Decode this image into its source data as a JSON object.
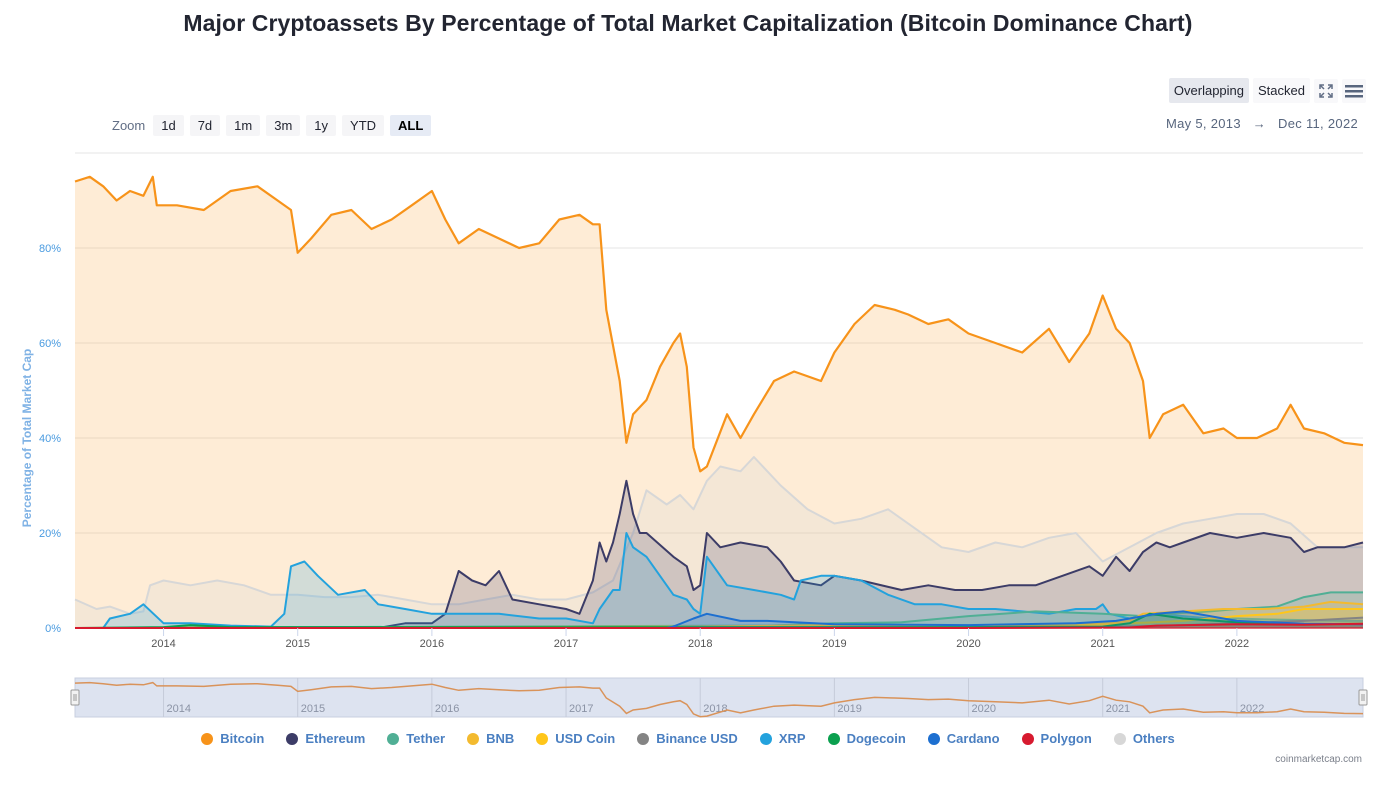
{
  "page": {
    "title": "Major Cryptoassets By Percentage of Total Market Capitalization (Bitcoin Dominance Chart)"
  },
  "zoom": {
    "label": "Zoom",
    "buttons": [
      "1d",
      "7d",
      "1m",
      "3m",
      "1y",
      "YTD",
      "ALL"
    ],
    "active": "ALL"
  },
  "modes": {
    "overlapping": "Overlapping",
    "stacked": "Stacked",
    "active": "Overlapping"
  },
  "icons": {
    "fullscreen": "fullscreen-icon",
    "menu": "hamburger-menu-icon"
  },
  "range": {
    "from": "May 5, 2013",
    "arrow": "→",
    "to": "Dec 11, 2022"
  },
  "watermark": "coinmarketcap.com",
  "chart_data": {
    "type": "area",
    "title": "Major Cryptoassets By Percentage of Total Market Capitalization (Bitcoin Dominance Chart)",
    "xlabel": "",
    "ylabel": "Percentage of Total Market Cap",
    "xlim": [
      2013.34,
      2022.94
    ],
    "ylim": [
      0,
      100
    ],
    "yticks": [
      0,
      20,
      40,
      60,
      80
    ],
    "ytick_labels": [
      "0%",
      "20%",
      "40%",
      "60%",
      "80%"
    ],
    "xticks": [
      2014,
      2015,
      2016,
      2017,
      2018,
      2019,
      2020,
      2021,
      2022
    ],
    "xtick_labels": [
      "2014",
      "2015",
      "2016",
      "2017",
      "2018",
      "2019",
      "2020",
      "2021",
      "2022"
    ],
    "grid": true,
    "legend_position": "bottom-center",
    "mode": "overlapping",
    "series": [
      {
        "name": "Others",
        "color": "#d7d7d7",
        "x": [
          2013.34,
          2013.5,
          2013.6,
          2013.75,
          2013.85,
          2013.9,
          2014.0,
          2014.2,
          2014.4,
          2014.6,
          2014.8,
          2015.0,
          2015.2,
          2015.4,
          2015.6,
          2015.8,
          2016.0,
          2016.2,
          2016.4,
          2016.6,
          2016.8,
          2017.0,
          2017.2,
          2017.35,
          2017.5,
          2017.6,
          2017.75,
          2017.85,
          2017.95,
          2018.05,
          2018.15,
          2018.3,
          2018.4,
          2018.6,
          2018.8,
          2019.0,
          2019.2,
          2019.4,
          2019.6,
          2019.8,
          2020.0,
          2020.2,
          2020.4,
          2020.6,
          2020.8,
          2021.0,
          2021.2,
          2021.4,
          2021.6,
          2021.8,
          2022.0,
          2022.2,
          2022.4,
          2022.6,
          2022.8,
          2022.94
        ],
        "y": [
          6,
          4,
          4.5,
          3,
          3.5,
          9,
          10,
          9,
          10,
          9,
          7,
          7,
          6.5,
          6.5,
          7,
          6,
          5,
          5,
          6,
          7,
          6,
          6,
          7.5,
          10,
          20,
          29,
          26,
          28,
          25,
          31,
          34,
          33,
          36,
          30,
          25,
          22,
          23,
          25,
          21,
          17,
          16,
          18,
          17,
          19,
          20,
          14,
          17,
          20,
          22,
          23,
          24,
          24,
          22,
          17,
          17,
          17
        ]
      },
      {
        "name": "Bitcoin",
        "color": "#f7931a",
        "x": [
          2013.34,
          2013.45,
          2013.55,
          2013.65,
          2013.75,
          2013.85,
          2013.92,
          2013.95,
          2014.1,
          2014.3,
          2014.5,
          2014.7,
          2014.85,
          2014.95,
          2015.0,
          2015.1,
          2015.25,
          2015.4,
          2015.55,
          2015.7,
          2015.85,
          2016.0,
          2016.1,
          2016.2,
          2016.35,
          2016.5,
          2016.65,
          2016.8,
          2016.95,
          2017.1,
          2017.2,
          2017.25,
          2017.3,
          2017.4,
          2017.45,
          2017.5,
          2017.6,
          2017.7,
          2017.8,
          2017.85,
          2017.9,
          2017.95,
          2018.0,
          2018.05,
          2018.2,
          2018.3,
          2018.4,
          2018.55,
          2018.7,
          2018.9,
          2019.0,
          2019.15,
          2019.3,
          2019.45,
          2019.55,
          2019.7,
          2019.85,
          2020.0,
          2020.2,
          2020.4,
          2020.6,
          2020.75,
          2020.9,
          2021.0,
          2021.1,
          2021.2,
          2021.3,
          2021.35,
          2021.45,
          2021.6,
          2021.75,
          2021.9,
          2022.0,
          2022.15,
          2022.3,
          2022.4,
          2022.5,
          2022.65,
          2022.8,
          2022.94
        ],
        "y": [
          94,
          95,
          93,
          90,
          92,
          91,
          95,
          89,
          89,
          88,
          92,
          93,
          90,
          88,
          79,
          82,
          87,
          88,
          84,
          86,
          89,
          92,
          86,
          81,
          84,
          82,
          80,
          81,
          86,
          87,
          85,
          85,
          67,
          52,
          39,
          45,
          48,
          55,
          60,
          62,
          55,
          38,
          33,
          34,
          45,
          40,
          45,
          52,
          54,
          52,
          58,
          64,
          68,
          67,
          66,
          64,
          65,
          62,
          60,
          58,
          63,
          56,
          62,
          70,
          63,
          60,
          52,
          40,
          45,
          47,
          41,
          42,
          40,
          40,
          42,
          47,
          42,
          41,
          39,
          38.5
        ]
      },
      {
        "name": "Ethereum",
        "color": "#3c3c67",
        "x": [
          2013.34,
          2015.6,
          2015.8,
          2016.0,
          2016.1,
          2016.2,
          2016.3,
          2016.4,
          2016.5,
          2016.6,
          2016.8,
          2017.0,
          2017.1,
          2017.2,
          2017.25,
          2017.3,
          2017.35,
          2017.4,
          2017.45,
          2017.5,
          2017.55,
          2017.6,
          2017.8,
          2017.9,
          2017.95,
          2018.0,
          2018.05,
          2018.15,
          2018.3,
          2018.5,
          2018.6,
          2018.7,
          2018.9,
          2019.0,
          2019.2,
          2019.5,
          2019.7,
          2019.9,
          2020.1,
          2020.3,
          2020.5,
          2020.7,
          2020.9,
          2021.0,
          2021.1,
          2021.2,
          2021.3,
          2021.4,
          2021.5,
          2021.6,
          2021.8,
          2022.0,
          2022.2,
          2022.4,
          2022.5,
          2022.6,
          2022.8,
          2022.94
        ],
        "y": [
          0,
          0,
          1,
          1,
          3,
          12,
          10,
          9,
          12,
          6,
          5,
          4,
          3,
          10,
          18,
          14,
          18,
          24,
          31,
          24,
          20,
          20,
          15,
          13,
          8,
          9,
          20,
          17,
          18,
          17,
          14,
          10,
          9,
          11,
          10,
          8,
          9,
          8,
          8,
          9,
          9,
          11,
          13,
          11,
          15,
          12,
          16,
          18,
          17,
          18,
          20,
          19,
          20,
          19,
          16,
          17,
          17,
          18
        ]
      },
      {
        "name": "XRP",
        "color": "#23a2dd",
        "x": [
          2013.34,
          2013.55,
          2013.6,
          2013.75,
          2013.85,
          2014.0,
          2014.2,
          2014.5,
          2014.8,
          2014.9,
          2014.95,
          2015.05,
          2015.15,
          2015.3,
          2015.5,
          2015.6,
          2015.8,
          2016.0,
          2016.2,
          2016.5,
          2016.8,
          2017.0,
          2017.2,
          2017.25,
          2017.35,
          2017.4,
          2017.45,
          2017.5,
          2017.6,
          2017.8,
          2017.9,
          2017.95,
          2018.0,
          2018.05,
          2018.2,
          2018.4,
          2018.6,
          2018.7,
          2018.75,
          2018.9,
          2019.0,
          2019.2,
          2019.4,
          2019.6,
          2019.8,
          2020.0,
          2020.2,
          2020.4,
          2020.6,
          2020.8,
          2020.95,
          2021.0,
          2021.05,
          2021.2,
          2021.4,
          2021.6,
          2021.8,
          2022.0,
          2022.2,
          2022.4,
          2022.6,
          2022.8,
          2022.94
        ],
        "y": [
          0,
          0,
          2,
          3,
          5,
          1,
          1,
          0.5,
          0.3,
          3,
          13,
          14,
          11,
          7,
          8,
          5,
          4,
          3,
          3,
          3,
          2,
          2,
          1,
          4,
          8,
          8,
          20,
          17,
          15,
          7,
          6,
          4,
          3,
          15,
          9,
          8,
          7,
          6,
          10,
          11,
          11,
          10,
          7,
          5,
          5,
          4,
          4,
          3.5,
          3,
          4,
          4,
          5,
          3,
          2,
          3,
          2.5,
          2,
          2,
          1.8,
          1.7,
          1.6,
          1.5,
          1.5
        ]
      },
      {
        "name": "Tether",
        "color": "#50af95",
        "x": [
          2013.34,
          2018.5,
          2019.0,
          2019.5,
          2020.0,
          2020.5,
          2021.0,
          2021.3,
          2021.5,
          2021.8,
          2022.0,
          2022.3,
          2022.5,
          2022.7,
          2022.94
        ],
        "y": [
          0,
          0.5,
          1,
          1.2,
          2.5,
          3.5,
          3,
          2.5,
          3,
          3.5,
          4,
          4.5,
          6.5,
          7.5,
          7.5
        ]
      },
      {
        "name": "BNB",
        "color": "#f3ba2f",
        "x": [
          2013.34,
          2018.0,
          2019.0,
          2020.0,
          2020.8,
          2021.2,
          2021.3,
          2021.6,
          2021.9,
          2022.2,
          2022.5,
          2022.7,
          2022.94
        ],
        "y": [
          0,
          0.3,
          0.6,
          0.5,
          0.6,
          1.5,
          3,
          3.5,
          4,
          4,
          4.5,
          5.5,
          5
        ]
      },
      {
        "name": "USD Coin",
        "color": "#ffc61a",
        "x": [
          2013.34,
          2019.0,
          2020.0,
          2020.8,
          2021.2,
          2021.6,
          2022.0,
          2022.3,
          2022.5,
          2022.94
        ],
        "y": [
          0,
          0,
          0.2,
          0.5,
          1,
          1.5,
          2.5,
          3,
          4,
          4
        ]
      },
      {
        "name": "Binance USD",
        "color": "#848484",
        "x": [
          2013.34,
          2019.5,
          2020.5,
          2021.0,
          2021.5,
          2022.0,
          2022.5,
          2022.94
        ],
        "y": [
          0,
          0,
          0.3,
          0.2,
          0.5,
          1,
          1.5,
          2.2
        ]
      },
      {
        "name": "Dogecoin",
        "color": "#0ba04f",
        "x": [
          2013.34,
          2014.0,
          2014.2,
          2014.5,
          2015.0,
          2017.0,
          2020.0,
          2021.0,
          2021.2,
          2021.35,
          2021.6,
          2022.0,
          2022.5,
          2022.94
        ],
        "y": [
          0,
          0.2,
          0.6,
          0.2,
          0.2,
          0.2,
          0.2,
          0.3,
          1,
          3,
          2,
          1.2,
          0.8,
          0.9
        ]
      },
      {
        "name": "Cardano",
        "color": "#1d6fd0",
        "x": [
          2013.34,
          2017.75,
          2017.8,
          2017.95,
          2018.05,
          2018.3,
          2018.5,
          2019.0,
          2020.0,
          2020.8,
          2021.1,
          2021.4,
          2021.6,
          2021.8,
          2022.0,
          2022.5,
          2022.94
        ],
        "y": [
          0,
          0,
          0.3,
          2,
          3,
          1.5,
          1.5,
          0.8,
          0.6,
          1,
          1.5,
          3,
          3.5,
          2.5,
          1.5,
          0.9,
          0.8
        ]
      },
      {
        "name": "Polygon",
        "color": "#d71a2f",
        "x": [
          2013.34,
          2020.0,
          2021.2,
          2021.4,
          2021.8,
          2022.0,
          2022.5,
          2022.94
        ],
        "y": [
          0,
          0,
          0.1,
          0.5,
          0.7,
          0.8,
          0.7,
          0.9
        ]
      }
    ],
    "navigator": {
      "series": "Bitcoin",
      "xtick_labels": [
        "2014",
        "2015",
        "2016",
        "2017",
        "2018",
        "2019",
        "2020",
        "2021",
        "2022"
      ]
    }
  },
  "legend": [
    {
      "name": "Bitcoin",
      "color": "#f7931a"
    },
    {
      "name": "Ethereum",
      "color": "#3c3c67"
    },
    {
      "name": "Tether",
      "color": "#50af95"
    },
    {
      "name": "BNB",
      "color": "#f3ba2f"
    },
    {
      "name": "USD Coin",
      "color": "#ffc61a"
    },
    {
      "name": "Binance USD",
      "color": "#848484"
    },
    {
      "name": "XRP",
      "color": "#23a2dd"
    },
    {
      "name": "Dogecoin",
      "color": "#0ba04f"
    },
    {
      "name": "Cardano",
      "color": "#1d6fd0"
    },
    {
      "name": "Polygon",
      "color": "#d71a2f"
    },
    {
      "name": "Others",
      "color": "#d7d7d7"
    }
  ]
}
